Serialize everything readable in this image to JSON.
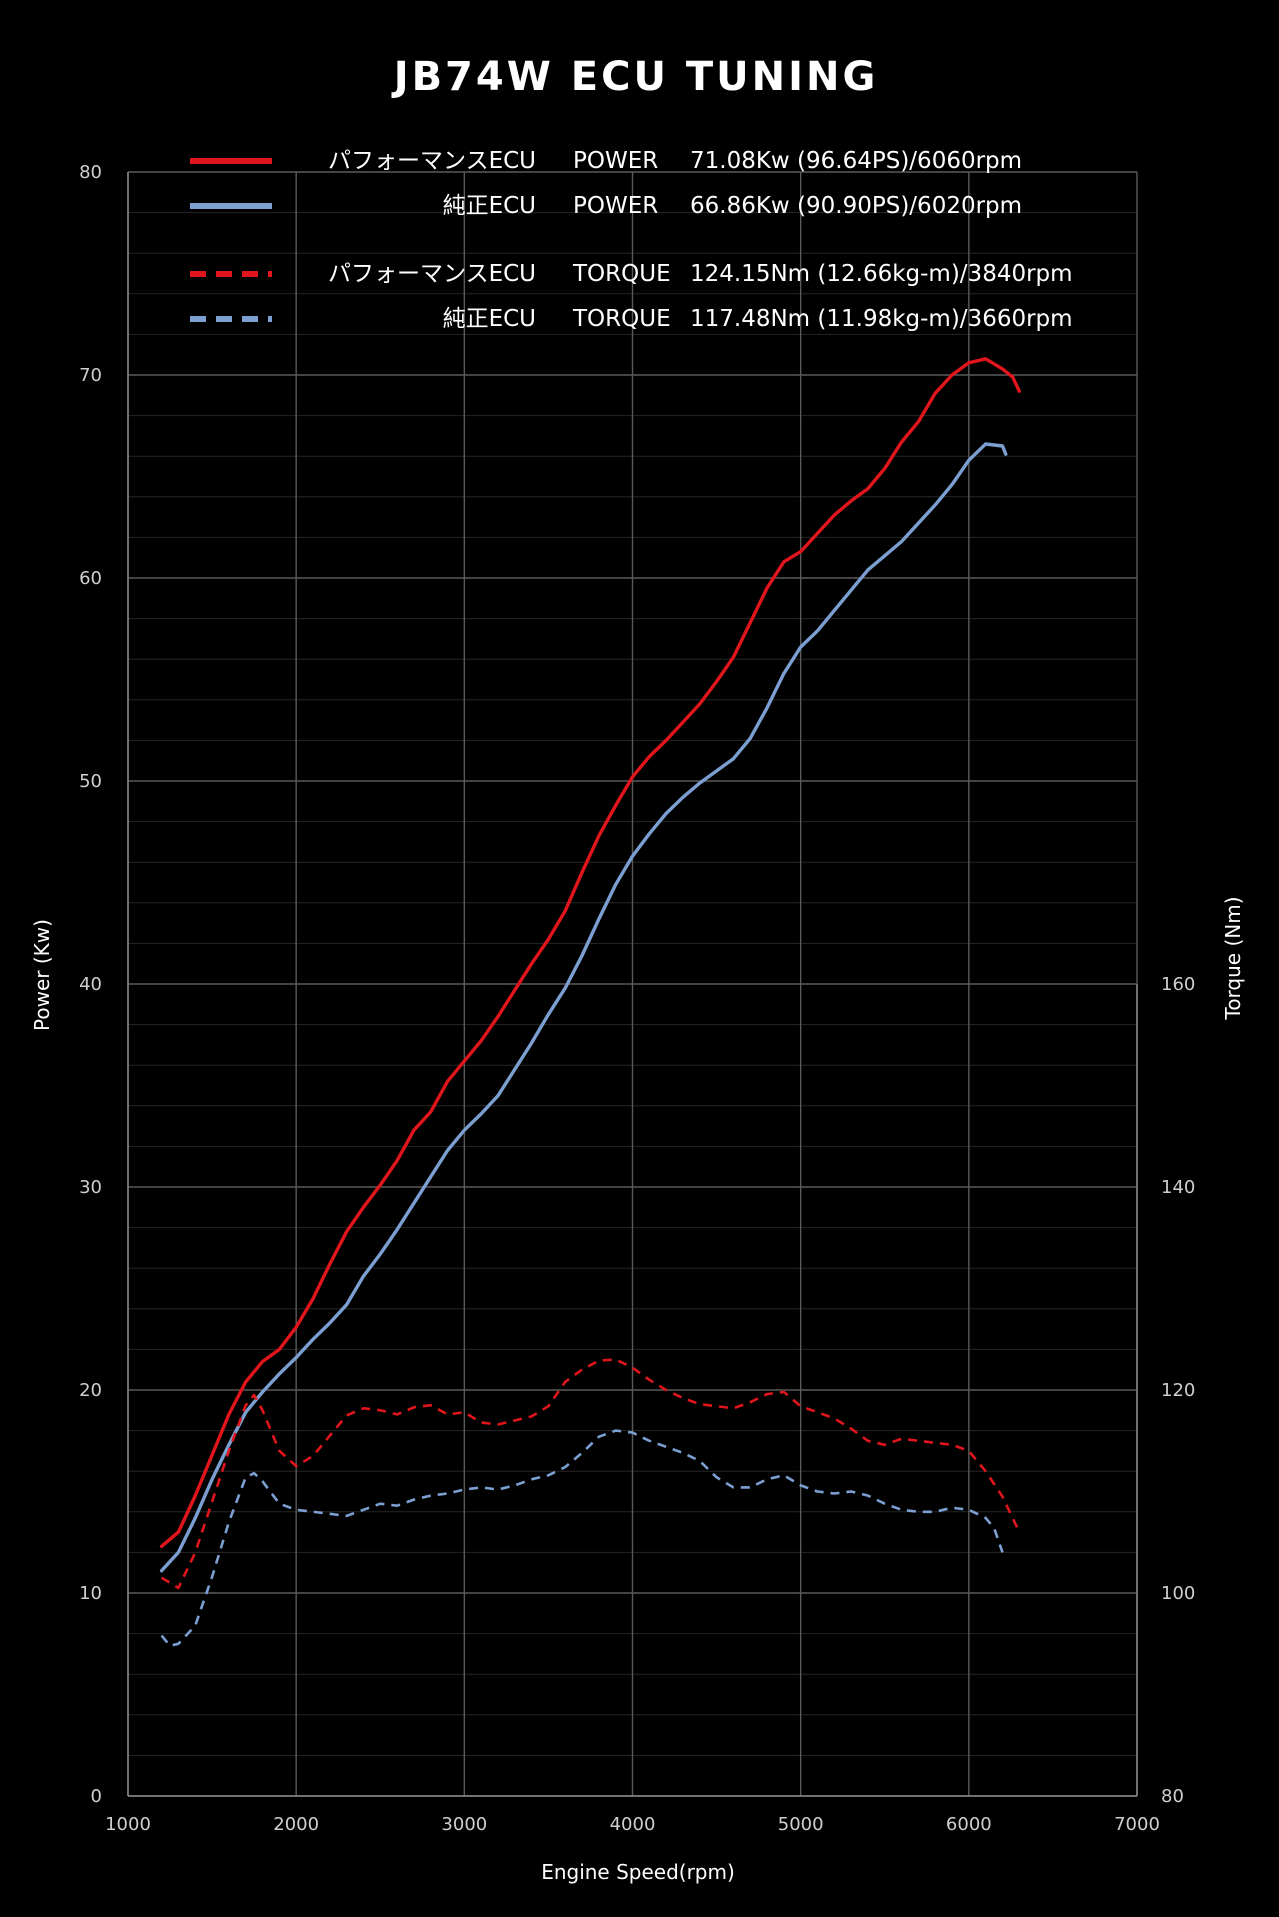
{
  "chart_data": {
    "type": "line",
    "title": "JB74W ECU TUNING",
    "xlabel": "Engine Speed(rpm)",
    "ylabel": "Power (Kw)",
    "y2label": "Torque (Nm)",
    "xlim": [
      1000,
      7000
    ],
    "ylim": [
      0,
      80
    ],
    "y2lim": [
      80,
      240
    ],
    "x_ticks": [
      1000,
      2000,
      3000,
      4000,
      5000,
      6000,
      7000
    ],
    "y_ticks": [
      0,
      10,
      20,
      30,
      40,
      50,
      60,
      70,
      80
    ],
    "y2_ticks": [
      80,
      100,
      120,
      140,
      160
    ],
    "grid": true,
    "legend_position": "top",
    "series": [
      {
        "key": "perf_power",
        "name": "パフォーマンスECU",
        "metric": "POWER",
        "value_text": "71.08Kw (96.64PS)/6060rpm",
        "color": "#e0161c",
        "dash": "solid",
        "axis": "power",
        "points": [
          [
            1200,
            12.3
          ],
          [
            1300,
            13.0
          ],
          [
            1400,
            14.8
          ],
          [
            1500,
            16.8
          ],
          [
            1600,
            18.8
          ],
          [
            1700,
            20.4
          ],
          [
            1800,
            21.4
          ],
          [
            1900,
            22.0
          ],
          [
            2000,
            23.1
          ],
          [
            2100,
            24.5
          ],
          [
            2200,
            26.2
          ],
          [
            2300,
            27.8
          ],
          [
            2400,
            29.0
          ],
          [
            2500,
            30.1
          ],
          [
            2600,
            31.3
          ],
          [
            2700,
            32.8
          ],
          [
            2800,
            33.7
          ],
          [
            2900,
            35.2
          ],
          [
            3000,
            36.2
          ],
          [
            3100,
            37.2
          ],
          [
            3200,
            38.4
          ],
          [
            3300,
            39.7
          ],
          [
            3400,
            41.0
          ],
          [
            3500,
            42.2
          ],
          [
            3600,
            43.6
          ],
          [
            3700,
            45.5
          ],
          [
            3800,
            47.3
          ],
          [
            3900,
            48.8
          ],
          [
            4000,
            50.2
          ],
          [
            4100,
            51.2
          ],
          [
            4200,
            52.0
          ],
          [
            4300,
            52.9
          ],
          [
            4400,
            53.8
          ],
          [
            4500,
            54.9
          ],
          [
            4600,
            56.1
          ],
          [
            4700,
            57.8
          ],
          [
            4800,
            59.5
          ],
          [
            4900,
            60.8
          ],
          [
            5000,
            61.3
          ],
          [
            5100,
            62.2
          ],
          [
            5200,
            63.1
          ],
          [
            5300,
            63.8
          ],
          [
            5400,
            64.4
          ],
          [
            5500,
            65.4
          ],
          [
            5600,
            66.7
          ],
          [
            5700,
            67.7
          ],
          [
            5800,
            69.1
          ],
          [
            5900,
            70.0
          ],
          [
            6000,
            70.6
          ],
          [
            6100,
            70.8
          ],
          [
            6200,
            70.3
          ],
          [
            6260,
            69.9
          ],
          [
            6300,
            69.2
          ]
        ]
      },
      {
        "key": "stock_power",
        "name": "純正ECU",
        "metric": "POWER",
        "value_text": "66.86Kw (90.90PS)/6020rpm",
        "color": "#7c9fd2",
        "dash": "solid",
        "axis": "power",
        "points": [
          [
            1200,
            11.1
          ],
          [
            1300,
            12.0
          ],
          [
            1400,
            13.7
          ],
          [
            1500,
            15.6
          ],
          [
            1600,
            17.3
          ],
          [
            1700,
            18.9
          ],
          [
            1800,
            19.9
          ],
          [
            1900,
            20.8
          ],
          [
            2000,
            21.6
          ],
          [
            2100,
            22.5
          ],
          [
            2200,
            23.3
          ],
          [
            2300,
            24.2
          ],
          [
            2400,
            25.6
          ],
          [
            2500,
            26.7
          ],
          [
            2600,
            27.9
          ],
          [
            2700,
            29.2
          ],
          [
            2800,
            30.5
          ],
          [
            2900,
            31.8
          ],
          [
            3000,
            32.8
          ],
          [
            3100,
            33.6
          ],
          [
            3200,
            34.5
          ],
          [
            3300,
            35.8
          ],
          [
            3400,
            37.1
          ],
          [
            3500,
            38.5
          ],
          [
            3600,
            39.8
          ],
          [
            3700,
            41.4
          ],
          [
            3800,
            43.2
          ],
          [
            3900,
            44.9
          ],
          [
            4000,
            46.3
          ],
          [
            4100,
            47.4
          ],
          [
            4200,
            48.4
          ],
          [
            4300,
            49.2
          ],
          [
            4400,
            49.9
          ],
          [
            4500,
            50.5
          ],
          [
            4600,
            51.1
          ],
          [
            4700,
            52.1
          ],
          [
            4800,
            53.6
          ],
          [
            4900,
            55.3
          ],
          [
            5000,
            56.6
          ],
          [
            5100,
            57.4
          ],
          [
            5200,
            58.4
          ],
          [
            5300,
            59.4
          ],
          [
            5400,
            60.4
          ],
          [
            5500,
            61.1
          ],
          [
            5600,
            61.8
          ],
          [
            5700,
            62.7
          ],
          [
            5800,
            63.6
          ],
          [
            5900,
            64.6
          ],
          [
            6000,
            65.8
          ],
          [
            6100,
            66.6
          ],
          [
            6200,
            66.5
          ],
          [
            6220,
            66.1
          ]
        ]
      },
      {
        "key": "perf_torque",
        "name": "パフォーマンスECU",
        "metric": "TORQUE",
        "value_text": "124.15Nm (12.66kg-m)/3840rpm",
        "color": "#e0161c",
        "dash": "dashed",
        "axis": "torque",
        "points": [
          [
            1200,
            101.5
          ],
          [
            1250,
            101.0
          ],
          [
            1300,
            100.5
          ],
          [
            1400,
            104
          ],
          [
            1500,
            109
          ],
          [
            1600,
            114
          ],
          [
            1700,
            118.5
          ],
          [
            1750,
            119.5
          ],
          [
            1800,
            118
          ],
          [
            1850,
            116
          ],
          [
            1900,
            114
          ],
          [
            2000,
            112.5
          ],
          [
            2100,
            113.5
          ],
          [
            2200,
            115.5
          ],
          [
            2300,
            117.5
          ],
          [
            2400,
            118.2
          ],
          [
            2500,
            118.0
          ],
          [
            2600,
            117.6
          ],
          [
            2700,
            118.3
          ],
          [
            2800,
            118.5
          ],
          [
            2900,
            117.6
          ],
          [
            3000,
            117.8
          ],
          [
            3100,
            116.8
          ],
          [
            3200,
            116.6
          ],
          [
            3300,
            117.0
          ],
          [
            3400,
            117.4
          ],
          [
            3500,
            118.4
          ],
          [
            3600,
            120.8
          ],
          [
            3700,
            122.0
          ],
          [
            3800,
            122.9
          ],
          [
            3900,
            123.0
          ],
          [
            4000,
            122.2
          ],
          [
            4100,
            121.0
          ],
          [
            4200,
            120.0
          ],
          [
            4300,
            119.2
          ],
          [
            4400,
            118.6
          ],
          [
            4500,
            118.4
          ],
          [
            4600,
            118.2
          ],
          [
            4700,
            118.8
          ],
          [
            4800,
            119.6
          ],
          [
            4900,
            119.8
          ],
          [
            5000,
            118.4
          ],
          [
            5100,
            117.8
          ],
          [
            5200,
            117.2
          ],
          [
            5300,
            116.2
          ],
          [
            5400,
            115.0
          ],
          [
            5500,
            114.6
          ],
          [
            5600,
            115.2
          ],
          [
            5700,
            115.0
          ],
          [
            5800,
            114.8
          ],
          [
            5900,
            114.6
          ],
          [
            6000,
            114.0
          ],
          [
            6100,
            112.0
          ],
          [
            6200,
            109.5
          ],
          [
            6300,
            106.0
          ]
        ]
      },
      {
        "key": "stock_torque",
        "name": "純正ECU",
        "metric": "TORQUE",
        "value_text": "117.48Nm (11.98kg-m)/3660rpm",
        "color": "#7c9fd2",
        "dash": "dashed",
        "axis": "torque",
        "points": [
          [
            1200,
            95.8
          ],
          [
            1250,
            94.8
          ],
          [
            1300,
            95.0
          ],
          [
            1400,
            96.8
          ],
          [
            1500,
            101.6
          ],
          [
            1600,
            107.0
          ],
          [
            1700,
            111.4
          ],
          [
            1750,
            111.8
          ],
          [
            1800,
            111.0
          ],
          [
            1900,
            108.8
          ],
          [
            2000,
            108.2
          ],
          [
            2100,
            108.0
          ],
          [
            2200,
            107.8
          ],
          [
            2300,
            107.6
          ],
          [
            2400,
            108.2
          ],
          [
            2500,
            108.8
          ],
          [
            2600,
            108.6
          ],
          [
            2700,
            109.2
          ],
          [
            2800,
            109.6
          ],
          [
            2900,
            109.8
          ],
          [
            3000,
            110.2
          ],
          [
            3100,
            110.4
          ],
          [
            3200,
            110.2
          ],
          [
            3300,
            110.6
          ],
          [
            3400,
            111.2
          ],
          [
            3500,
            111.6
          ],
          [
            3600,
            112.4
          ],
          [
            3700,
            113.8
          ],
          [
            3800,
            115.4
          ],
          [
            3900,
            116.0
          ],
          [
            4000,
            115.8
          ],
          [
            4100,
            115.0
          ],
          [
            4200,
            114.4
          ],
          [
            4300,
            113.8
          ],
          [
            4400,
            113.0
          ],
          [
            4500,
            111.4
          ],
          [
            4600,
            110.4
          ],
          [
            4700,
            110.4
          ],
          [
            4800,
            111.2
          ],
          [
            4900,
            111.6
          ],
          [
            5000,
            110.6
          ],
          [
            5100,
            110.0
          ],
          [
            5200,
            109.8
          ],
          [
            5300,
            110.0
          ],
          [
            5400,
            109.6
          ],
          [
            5500,
            108.8
          ],
          [
            5600,
            108.2
          ],
          [
            5700,
            108.0
          ],
          [
            5800,
            108.0
          ],
          [
            5900,
            108.4
          ],
          [
            6000,
            108.2
          ],
          [
            6100,
            107.4
          ],
          [
            6150,
            106.4
          ],
          [
            6200,
            104.0
          ]
        ]
      }
    ]
  }
}
